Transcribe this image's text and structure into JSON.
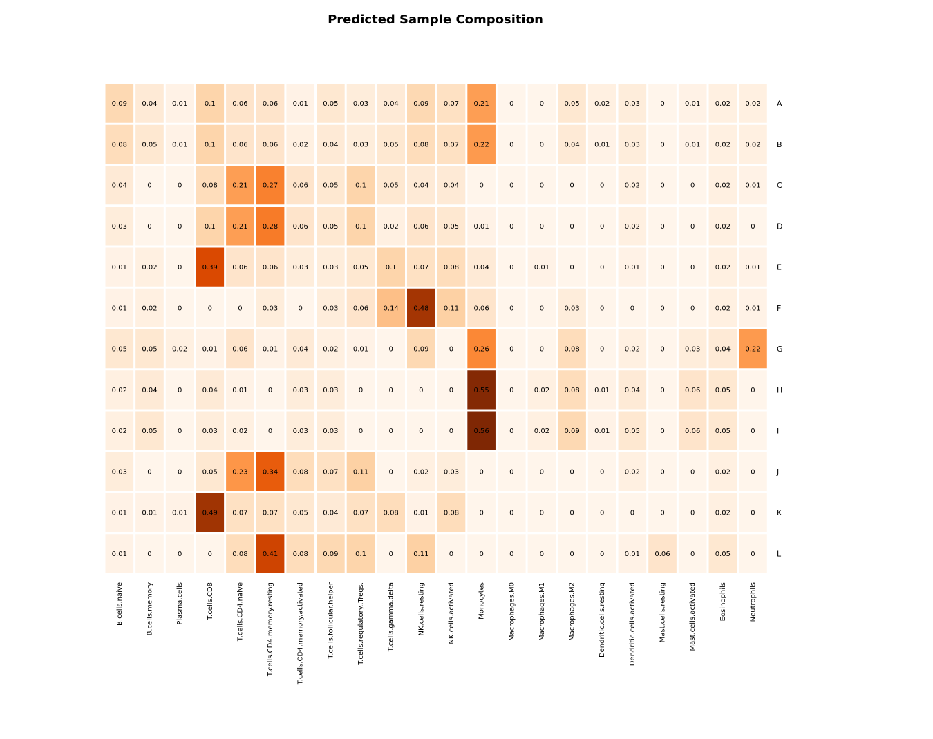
{
  "chart_data": {
    "type": "heatmap",
    "title": "Predicted Sample Composition",
    "columns": [
      "B.cells.naive",
      "B.cells.memory",
      "Plasma.cells",
      "T.cells.CD8",
      "T.cells.CD4.naive",
      "T.cells.CD4.memory.resting",
      "T.cells.CD4.memory.activated",
      "T.cells.follicular.helper",
      "T.cells.regulatory..Tregs.",
      "T.cells.gamma.delta",
      "NK.cells.resting",
      "NK.cells.activated",
      "Monocytes",
      "Macrophages.M0",
      "Macrophages.M1",
      "Macrophages.M2",
      "Dendritic.cells.resting",
      "Dendritic.cells.activated",
      "Mast.cells.resting",
      "Mast.cells.activated",
      "Eosinophils",
      "Neutrophils"
    ],
    "rows": [
      "A",
      "B",
      "C",
      "D",
      "E",
      "F",
      "G",
      "H",
      "I",
      "J",
      "K",
      "L"
    ],
    "values": [
      [
        "0.09",
        "0.04",
        "0.01",
        "0.1",
        "0.06",
        "0.06",
        "0.01",
        "0.05",
        "0.03",
        "0.04",
        "0.09",
        "0.07",
        "0.21",
        "0",
        "0",
        "0.05",
        "0.02",
        "0.03",
        "0",
        "0.01",
        "0.02",
        "0.02"
      ],
      [
        "0.08",
        "0.05",
        "0.01",
        "0.1",
        "0.06",
        "0.06",
        "0.02",
        "0.04",
        "0.03",
        "0.05",
        "0.08",
        "0.07",
        "0.22",
        "0",
        "0",
        "0.04",
        "0.01",
        "0.03",
        "0",
        "0.01",
        "0.02",
        "0.02"
      ],
      [
        "0.04",
        "0",
        "0",
        "0.08",
        "0.21",
        "0.27",
        "0.06",
        "0.05",
        "0.1",
        "0.05",
        "0.04",
        "0.04",
        "0",
        "0",
        "0",
        "0",
        "0",
        "0.02",
        "0",
        "0",
        "0.02",
        "0.01"
      ],
      [
        "0.03",
        "0",
        "0",
        "0.1",
        "0.21",
        "0.28",
        "0.06",
        "0.05",
        "0.1",
        "0.02",
        "0.06",
        "0.05",
        "0.01",
        "0",
        "0",
        "0",
        "0",
        "0.02",
        "0",
        "0",
        "0.02",
        "0"
      ],
      [
        "0.01",
        "0.02",
        "0",
        "0.39",
        "0.06",
        "0.06",
        "0.03",
        "0.03",
        "0.05",
        "0.1",
        "0.07",
        "0.08",
        "0.04",
        "0",
        "0.01",
        "0",
        "0",
        "0.01",
        "0",
        "0",
        "0.02",
        "0.01"
      ],
      [
        "0.01",
        "0.02",
        "0",
        "0",
        "0",
        "0.03",
        "0",
        "0.03",
        "0.06",
        "0.14",
        "0.48",
        "0.11",
        "0.06",
        "0",
        "0",
        "0.03",
        "0",
        "0",
        "0",
        "0",
        "0.02",
        "0.01"
      ],
      [
        "0.05",
        "0.05",
        "0.02",
        "0.01",
        "0.06",
        "0.01",
        "0.04",
        "0.02",
        "0.01",
        "0",
        "0.09",
        "0",
        "0.26",
        "0",
        "0",
        "0.08",
        "0",
        "0.02",
        "0",
        "0.03",
        "0.04",
        "0.22"
      ],
      [
        "0.02",
        "0.04",
        "0",
        "0.04",
        "0.01",
        "0",
        "0.03",
        "0.03",
        "0",
        "0",
        "0",
        "0",
        "0.55",
        "0",
        "0.02",
        "0.08",
        "0.01",
        "0.04",
        "0",
        "0.06",
        "0.05",
        "0"
      ],
      [
        "0.02",
        "0.05",
        "0",
        "0.03",
        "0.02",
        "0",
        "0.03",
        "0.03",
        "0",
        "0",
        "0",
        "0",
        "0.56",
        "0",
        "0.02",
        "0.09",
        "0.01",
        "0.05",
        "0",
        "0.06",
        "0.05",
        "0"
      ],
      [
        "0.03",
        "0",
        "0",
        "0.05",
        "0.23",
        "0.34",
        "0.08",
        "0.07",
        "0.11",
        "0",
        "0.02",
        "0.03",
        "0",
        "0",
        "0",
        "0",
        "0",
        "0.02",
        "0",
        "0",
        "0.02",
        "0"
      ],
      [
        "0.01",
        "0.01",
        "0.01",
        "0.49",
        "0.07",
        "0.07",
        "0.05",
        "0.04",
        "0.07",
        "0.08",
        "0.01",
        "0.08",
        "0",
        "0",
        "0",
        "0",
        "0",
        "0",
        "0",
        "0",
        "0.02",
        "0"
      ],
      [
        "0.01",
        "0",
        "0",
        "0",
        "0.08",
        "0.41",
        "0.08",
        "0.09",
        "0.1",
        "0",
        "0.11",
        "0",
        "0",
        "0",
        "0",
        "0",
        "0",
        "0.01",
        "0.06",
        "0",
        "0.05",
        "0"
      ]
    ],
    "colormap": "Oranges",
    "legend": "none",
    "grid": false
  }
}
